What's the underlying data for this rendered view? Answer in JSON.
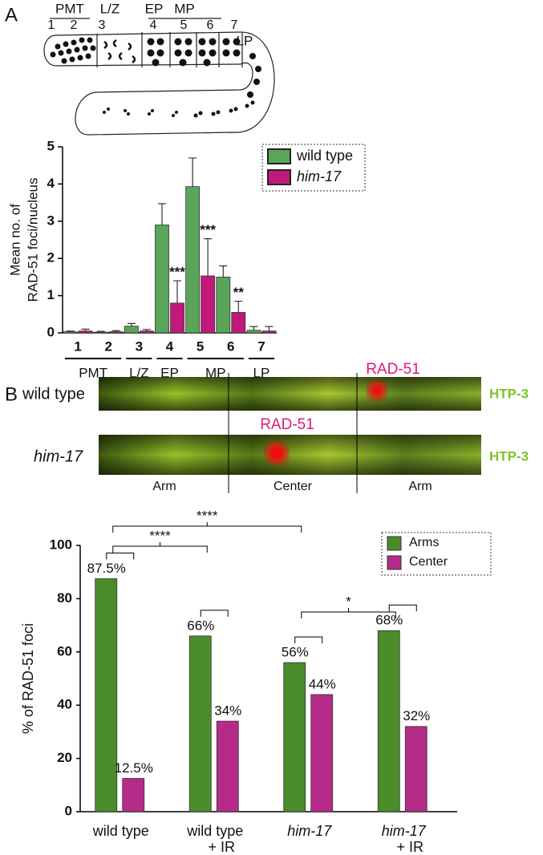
{
  "panel_labels": [
    "A",
    "B"
  ],
  "diagram": {
    "regions": [
      "PMT",
      "L/Z",
      "EP",
      "MP",
      "LP"
    ],
    "zones": [
      "1",
      "2",
      "3",
      "4",
      "5",
      "6",
      "7"
    ]
  },
  "chart_data": [
    {
      "type": "bar",
      "groups": [
        {
          "label": "PMT",
          "categories": [
            "1",
            "2"
          ]
        },
        {
          "label": "L/Z",
          "categories": [
            "3"
          ]
        },
        {
          "label": "EP",
          "categories": [
            "4"
          ]
        },
        {
          "label": "MP",
          "categories": [
            "5",
            "6"
          ]
        },
        {
          "label": "LP",
          "categories": [
            "7"
          ]
        }
      ],
      "series": [
        {
          "name": "wild type",
          "color": "#5aa55a",
          "values": [
            0.03,
            0.02,
            0.18,
            2.9,
            3.93,
            1.5,
            0.07
          ],
          "errors": [
            0.02,
            0.02,
            0.07,
            0.57,
            0.77,
            0.3,
            0.1
          ]
        },
        {
          "name": "him-17",
          "color": "#c0197b",
          "values": [
            0.05,
            0.03,
            0.05,
            0.8,
            1.53,
            0.55,
            0.05
          ],
          "errors": [
            0.05,
            0.03,
            0.04,
            0.6,
            1.0,
            0.3,
            0.12
          ],
          "annotations": [
            null,
            null,
            null,
            "***",
            "***",
            "**",
            null
          ]
        }
      ],
      "ylabel": [
        "Mean no. of",
        "RAD-51 foci/nucleus"
      ],
      "ylim": [
        0,
        5
      ],
      "yticks": [
        0,
        1,
        2,
        3,
        4,
        5
      ],
      "legend": "upper right"
    },
    {
      "type": "bar",
      "categories": [
        [
          "wild type"
        ],
        [
          "wild type",
          "+ IR"
        ],
        [
          "him-17"
        ],
        [
          "him-17",
          "+ IR"
        ]
      ],
      "series": [
        {
          "name": "Arms",
          "color": "#4a8c2a",
          "values": [
            87.5,
            66,
            56,
            68
          ],
          "value_labels": [
            "87.5%",
            "66%",
            "56%",
            "68%"
          ]
        },
        {
          "name": "Center",
          "color": "#b52b8a",
          "values": [
            12.5,
            34,
            44,
            32
          ],
          "value_labels": [
            "12.5%",
            "34%",
            "44%",
            "32%"
          ]
        }
      ],
      "ylabel": "% of RAD-51 foci",
      "ylim": [
        0,
        100
      ],
      "yticks": [
        0,
        20,
        40,
        60,
        80,
        100
      ],
      "comparisons": [
        "****",
        "****",
        "*"
      ],
      "legend": "upper right"
    }
  ],
  "micrograph": {
    "rows": [
      "wild type",
      "him-17"
    ],
    "foci_labels": [
      "RAD-51",
      "RAD-51"
    ],
    "stain_labels": [
      "HTP-3",
      "HTP-3"
    ],
    "regions": [
      "Arm",
      "Center",
      "Arm"
    ]
  }
}
